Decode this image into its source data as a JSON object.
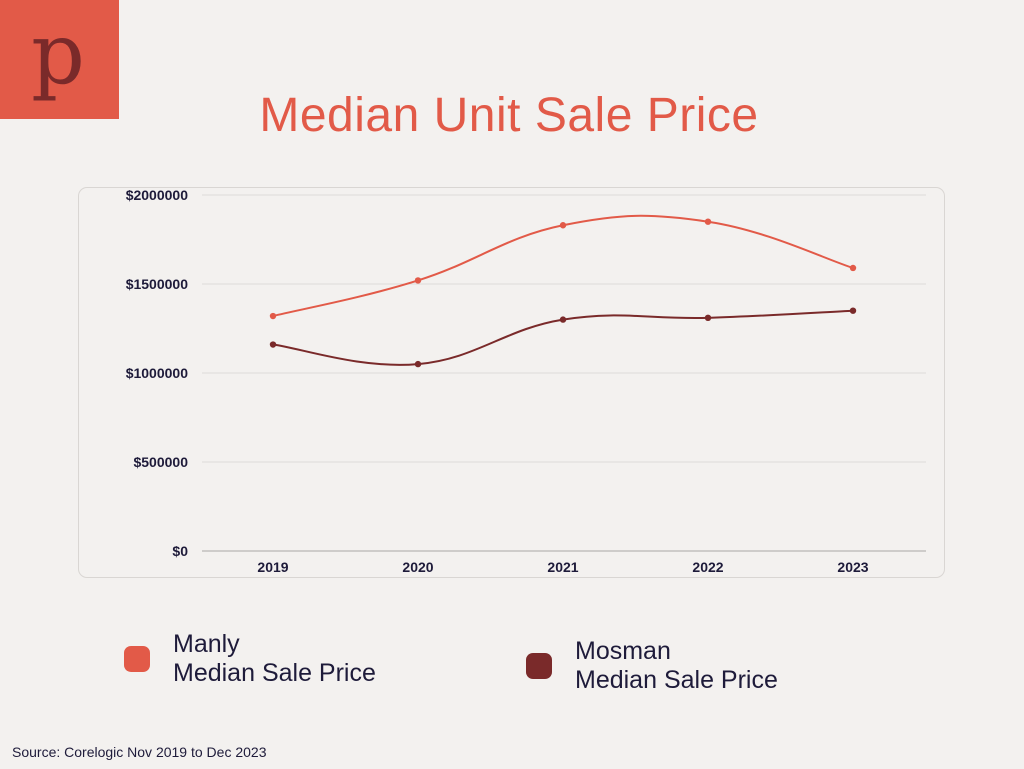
{
  "brand": {
    "logo_letter": "p",
    "logo_color": "#e25a48",
    "logo_letter_color": "#7a2a2a"
  },
  "title": "Median Unit Sale Price",
  "source": "Source: Corelogic Nov 2019 to Dec 2023",
  "legend": [
    {
      "line1": "Manly",
      "line2": "Median Sale Price",
      "color": "#e25a48"
    },
    {
      "line1": "Mosman",
      "line2": "Median Sale Price",
      "color": "#7a2a2a"
    }
  ],
  "chart_data": {
    "type": "line",
    "title": "Median Unit Sale Price",
    "xlabel": "",
    "ylabel": "",
    "categories": [
      "2019",
      "2020",
      "2021",
      "2022",
      "2023"
    ],
    "yticks": [
      0,
      500000,
      1000000,
      1500000,
      2000000
    ],
    "ytick_labels": [
      "$0",
      "$500000",
      "$1000000",
      "$1500000",
      "$2000000"
    ],
    "ylim": [
      0,
      2000000
    ],
    "grid": true,
    "smooth": true,
    "legend_position": "bottom",
    "series": [
      {
        "name": "Manly Median Sale Price",
        "color": "#e25a48",
        "values": [
          1320000,
          1520000,
          1830000,
          1850000,
          1590000
        ]
      },
      {
        "name": "Mosman Median Sale Price",
        "color": "#7a2a2a",
        "values": [
          1160000,
          1050000,
          1300000,
          1310000,
          1350000
        ]
      }
    ]
  }
}
